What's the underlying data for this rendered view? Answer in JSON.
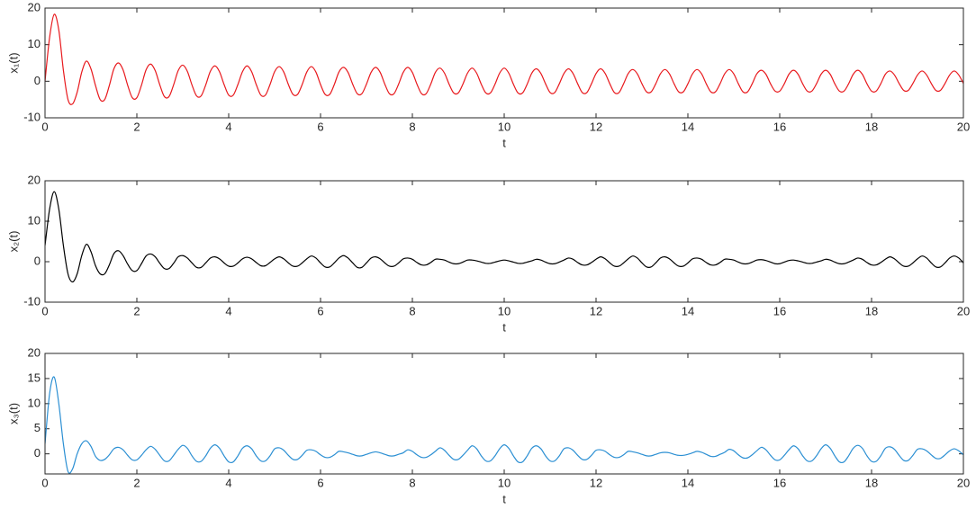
{
  "chart_data": [
    {
      "type": "line",
      "xlabel": "t",
      "ylabel": "x₁(t)",
      "color": "#e8191d",
      "xlim": [
        0,
        20
      ],
      "xticks": [
        0,
        2,
        4,
        6,
        8,
        10,
        12,
        14,
        16,
        18,
        20
      ],
      "ylim": [
        -10,
        20
      ],
      "yticks": [
        -10,
        0,
        10,
        20
      ],
      "x": [
        0,
        0.1,
        0.2,
        0.3,
        0.4,
        0.5,
        0.6,
        0.7,
        0.8,
        0.9,
        1,
        1.1,
        1.2,
        1.3,
        1.4,
        1.5,
        1.6,
        1.7,
        1.8,
        1.9,
        2,
        2.1,
        2.2,
        2.3,
        2.4,
        2.5,
        2.6,
        2.7,
        2.8,
        2.9,
        3,
        3.1,
        3.2,
        3.3,
        3.4,
        3.5,
        3.6,
        3.7,
        3.8,
        3.9,
        4,
        4.1,
        4.2,
        4.3,
        4.4,
        4.5,
        4.6,
        4.7,
        4.8,
        4.9,
        5,
        5.1,
        5.2,
        5.3,
        5.4,
        5.5,
        5.6,
        5.7,
        5.8,
        5.9,
        6,
        6.1,
        6.2,
        6.3,
        6.4,
        6.5,
        6.6,
        6.7,
        6.8,
        6.9,
        7,
        7.1,
        7.2,
        7.3,
        7.4,
        7.5,
        7.6,
        7.7,
        7.8,
        7.9,
        8,
        8.1,
        8.2,
        8.3,
        8.4,
        8.5,
        8.6,
        8.7,
        8.8,
        8.9,
        9,
        9.1,
        9.2,
        9.3,
        9.4,
        9.5,
        9.6,
        9.7,
        9.8,
        9.9,
        10,
        10.1,
        10.2,
        10.3,
        10.4,
        10.5,
        10.6,
        10.7,
        10.8,
        10.9,
        11,
        11.1,
        11.2,
        11.3,
        11.4,
        11.5,
        11.6,
        11.7,
        11.8,
        11.9,
        12,
        12.1,
        12.2,
        12.3,
        12.4,
        12.5,
        12.6,
        12.7,
        12.8,
        12.9,
        13,
        13.1,
        13.2,
        13.3,
        13.4,
        13.5,
        13.6,
        13.7,
        13.8,
        13.9,
        14,
        14.1,
        14.2,
        14.3,
        14.4,
        14.5,
        14.6,
        14.7,
        14.8,
        14.9,
        15,
        15.1,
        15.2,
        15.3,
        15.4,
        15.5,
        15.6,
        15.7,
        15.8,
        15.9,
        16,
        16.1,
        16.2,
        16.3,
        16.4,
        16.5,
        16.6,
        16.7,
        16.8,
        16.9,
        17,
        17.1,
        17.2,
        17.3,
        17.4,
        17.5,
        17.6,
        17.7,
        17.8,
        17.9,
        18,
        18.1,
        18.2,
        18.3,
        18.4,
        18.5,
        18.6,
        18.7,
        18.8,
        18.9,
        19,
        19.1,
        19.2,
        19.3,
        19.4,
        19.5,
        19.6,
        19.7,
        19.8,
        19.9,
        20
      ],
      "values": [
        0,
        12,
        18.3,
        14,
        3,
        -5,
        -6.2,
        -3,
        2.5,
        5.5,
        3.4,
        -1.2,
        -5,
        -5,
        -1.2,
        3.4,
        5,
        3.1,
        -1.1,
        -4.5,
        -4.5,
        -1.1,
        3.1,
        4.7,
        2.9,
        -1,
        -4.2,
        -4.2,
        -1,
        2.9,
        4.4,
        2.7,
        -1,
        -4,
        -4,
        -1,
        2.7,
        4.2,
        2.6,
        -0.9,
        -3.8,
        -3.8,
        -0.9,
        2.6,
        4.2,
        2.6,
        -0.9,
        -3.8,
        -3.8,
        -0.9,
        2.6,
        4,
        2.5,
        -0.9,
        -3.6,
        -3.6,
        -0.9,
        2.5,
        4,
        2.5,
        -0.9,
        -3.6,
        -3.6,
        -0.9,
        2.5,
        3.8,
        2.4,
        -0.8,
        -3.4,
        -3.4,
        -0.8,
        2.4,
        3.8,
        2.4,
        -0.8,
        -3.4,
        -3.4,
        -0.8,
        2.4,
        3.8,
        2.4,
        -0.8,
        -3.4,
        -3.4,
        -0.8,
        2.4,
        3.6,
        2.2,
        -0.8,
        -3.2,
        -3.2,
        -0.8,
        2.2,
        3.6,
        2.2,
        -0.8,
        -3.2,
        -3.2,
        -0.8,
        2.2,
        3.6,
        2.2,
        -0.8,
        -3.2,
        -3.2,
        -0.8,
        2.2,
        3.4,
        2.1,
        -0.7,
        -3.1,
        -3.1,
        -0.7,
        2.1,
        3.4,
        2.1,
        -0.7,
        -3.1,
        -3.1,
        -0.7,
        2.1,
        3.4,
        2.1,
        -0.7,
        -3.1,
        -3.1,
        -0.7,
        2.1,
        3.2,
        2,
        -0.7,
        -2.9,
        -2.9,
        -0.7,
        2,
        3.2,
        2,
        -0.7,
        -2.9,
        -2.9,
        -0.7,
        2,
        3.2,
        2,
        -0.7,
        -2.9,
        -2.9,
        -0.7,
        2,
        3.2,
        2,
        -0.7,
        -2.9,
        -2.9,
        -0.7,
        2,
        3,
        1.9,
        -0.7,
        -2.7,
        -2.7,
        -0.7,
        1.9,
        3,
        1.9,
        -0.7,
        -2.7,
        -2.7,
        -0.7,
        1.9,
        3,
        1.9,
        -0.7,
        -2.7,
        -2.7,
        -0.7,
        1.9,
        3,
        1.9,
        -0.7,
        -2.7,
        -2.7,
        -0.7,
        1.9,
        2.8,
        1.7,
        -0.6,
        -2.5,
        -2.5,
        -0.6,
        1.7,
        2.8,
        1.7,
        -0.6,
        -2.5,
        -2.5,
        -0.6,
        1.7,
        2.8,
        1.7,
        -0.6
      ]
    },
    {
      "type": "line",
      "xlabel": "t",
      "ylabel": "x₂(t)",
      "color": "#000000",
      "xlim": [
        0,
        20
      ],
      "xticks": [
        0,
        2,
        4,
        6,
        8,
        10,
        12,
        14,
        16,
        18,
        20
      ],
      "ylim": [
        -10,
        20
      ],
      "yticks": [
        -10,
        0,
        10,
        20
      ],
      "x": [
        0,
        0.1,
        0.2,
        0.3,
        0.4,
        0.5,
        0.6,
        0.7,
        0.8,
        0.9,
        1,
        1.1,
        1.2,
        1.3,
        1.4,
        1.5,
        1.6,
        1.7,
        1.8,
        1.9,
        2,
        2.1,
        2.2,
        2.3,
        2.4,
        2.5,
        2.6,
        2.7,
        2.8,
        2.9,
        3,
        3.1,
        3.2,
        3.3,
        3.4,
        3.5,
        3.6,
        3.7,
        3.8,
        3.9,
        4,
        4.1,
        4.2,
        4.3,
        4.4,
        4.5,
        4.6,
        4.7,
        4.8,
        4.9,
        5,
        5.1,
        5.2,
        5.3,
        5.4,
        5.5,
        5.6,
        5.7,
        5.8,
        5.9,
        6,
        6.1,
        6.2,
        6.3,
        6.4,
        6.5,
        6.6,
        6.7,
        6.8,
        6.9,
        7,
        7.1,
        7.2,
        7.3,
        7.4,
        7.5,
        7.6,
        7.7,
        7.8,
        7.9,
        8,
        8.1,
        8.2,
        8.3,
        8.4,
        8.5,
        8.6,
        8.7,
        8.8,
        8.9,
        9,
        9.1,
        9.2,
        9.3,
        9.4,
        9.5,
        9.6,
        9.7,
        9.8,
        9.9,
        10,
        10.1,
        10.2,
        10.3,
        10.4,
        10.5,
        10.6,
        10.7,
        10.8,
        10.9,
        11,
        11.1,
        11.2,
        11.3,
        11.4,
        11.5,
        11.6,
        11.7,
        11.8,
        11.9,
        12,
        12.1,
        12.2,
        12.3,
        12.4,
        12.5,
        12.6,
        12.7,
        12.8,
        12.9,
        13,
        13.1,
        13.2,
        13.3,
        13.4,
        13.5,
        13.6,
        13.7,
        13.8,
        13.9,
        14,
        14.1,
        14.2,
        14.3,
        14.4,
        14.5,
        14.6,
        14.7,
        14.8,
        14.9,
        15,
        15.1,
        15.2,
        15.3,
        15.4,
        15.5,
        15.6,
        15.7,
        15.8,
        15.9,
        16,
        16.1,
        16.2,
        16.3,
        16.4,
        16.5,
        16.6,
        16.7,
        16.8,
        16.9,
        17,
        17.1,
        17.2,
        17.3,
        17.4,
        17.5,
        17.6,
        17.7,
        17.8,
        17.9,
        18,
        18.1,
        18.2,
        18.3,
        18.4,
        18.5,
        18.6,
        18.7,
        18.8,
        18.9,
        19,
        19.1,
        19.2,
        19.3,
        19.4,
        19.5,
        19.6,
        19.7,
        19.8,
        19.9,
        20
      ],
      "values": [
        4,
        13,
        17.3,
        13,
        4,
        -3,
        -5,
        -3,
        1.5,
        4.3,
        2.5,
        -1,
        -3,
        -3,
        -0.8,
        2,
        2.7,
        1.5,
        -0.6,
        -2.2,
        -2.2,
        -0.5,
        1.4,
        1.9,
        1.2,
        -0.4,
        -1.7,
        -1.7,
        -0.4,
        1.2,
        1.5,
        0.9,
        -0.3,
        -1.4,
        -1.4,
        -0.3,
        0.9,
        1.2,
        0.7,
        -0.3,
        -1.1,
        -1.1,
        -0.3,
        0.7,
        1.1,
        0.7,
        -0.2,
        -1,
        -1,
        -0.2,
        0.7,
        1.2,
        0.7,
        -0.3,
        -1.1,
        -1.1,
        -0.3,
        0.7,
        1.4,
        0.9,
        -0.3,
        -1.3,
        -1.3,
        -0.3,
        0.9,
        1.5,
        0.9,
        -0.3,
        -1.4,
        -1.4,
        -0.3,
        0.9,
        1.2,
        0.7,
        -0.3,
        -1.1,
        -1.1,
        -0.3,
        0.7,
        0.9,
        0.6,
        -0.2,
        -0.8,
        -0.8,
        -0.2,
        0.6,
        0.6,
        0.4,
        -0.1,
        -0.5,
        -0.5,
        -0.1,
        0.4,
        0.4,
        0.2,
        -0.1,
        -0.4,
        -0.4,
        -0.1,
        0.2,
        0.4,
        0.2,
        -0.1,
        -0.4,
        -0.4,
        -0.1,
        0.2,
        0.6,
        0.4,
        -0.1,
        -0.5,
        -0.5,
        -0.1,
        0.4,
        0.9,
        0.6,
        -0.2,
        -0.8,
        -0.8,
        -0.2,
        0.6,
        1.2,
        0.7,
        -0.3,
        -1.1,
        -1.1,
        -0.3,
        0.7,
        1.4,
        0.9,
        -0.3,
        -1.3,
        -1.3,
        -0.3,
        0.9,
        1.2,
        0.7,
        -0.3,
        -1.1,
        -1.1,
        -0.3,
        0.7,
        0.9,
        0.6,
        -0.2,
        -0.8,
        -0.8,
        -0.2,
        0.6,
        0.6,
        0.4,
        -0.1,
        -0.5,
        -0.5,
        -0.1,
        0.4,
        0.5,
        0.3,
        -0.1,
        -0.5,
        -0.5,
        -0.1,
        0.3,
        0.4,
        0.2,
        -0.1,
        -0.4,
        -0.4,
        -0.1,
        0.2,
        0.6,
        0.4,
        -0.1,
        -0.5,
        -0.5,
        -0.1,
        0.4,
        0.9,
        0.6,
        -0.2,
        -0.8,
        -0.8,
        -0.2,
        0.6,
        1.2,
        0.7,
        -0.3,
        -1.1,
        -1.1,
        -0.3,
        0.7,
        1.4,
        0.9,
        -0.3,
        -1.3,
        -1.3,
        -0.3,
        0.9,
        1.4,
        0.9,
        -0.3
      ]
    },
    {
      "type": "line",
      "xlabel": "t",
      "ylabel": "x₃(t)",
      "color": "#2b8fd3",
      "xlim": [
        0,
        20
      ],
      "xticks": [
        0,
        2,
        4,
        6,
        8,
        10,
        12,
        14,
        16,
        18,
        20
      ],
      "ylim": [
        -4,
        20
      ],
      "yticks": [
        0,
        5,
        10,
        15,
        20
      ],
      "x": [
        0,
        0.1,
        0.2,
        0.3,
        0.4,
        0.5,
        0.6,
        0.7,
        0.8,
        0.9,
        1,
        1.1,
        1.2,
        1.3,
        1.4,
        1.5,
        1.6,
        1.7,
        1.8,
        1.9,
        2,
        2.1,
        2.2,
        2.3,
        2.4,
        2.5,
        2.6,
        2.7,
        2.8,
        2.9,
        3,
        3.1,
        3.2,
        3.3,
        3.4,
        3.5,
        3.6,
        3.7,
        3.8,
        3.9,
        4,
        4.1,
        4.2,
        4.3,
        4.4,
        4.5,
        4.6,
        4.7,
        4.8,
        4.9,
        5,
        5.1,
        5.2,
        5.3,
        5.4,
        5.5,
        5.6,
        5.7,
        5.8,
        5.9,
        6,
        6.1,
        6.2,
        6.3,
        6.4,
        6.5,
        6.6,
        6.7,
        6.8,
        6.9,
        7,
        7.1,
        7.2,
        7.3,
        7.4,
        7.5,
        7.6,
        7.7,
        7.8,
        7.9,
        8,
        8.1,
        8.2,
        8.3,
        8.4,
        8.5,
        8.6,
        8.7,
        8.8,
        8.9,
        9,
        9.1,
        9.2,
        9.3,
        9.4,
        9.5,
        9.6,
        9.7,
        9.8,
        9.9,
        10,
        10.1,
        10.2,
        10.3,
        10.4,
        10.5,
        10.6,
        10.7,
        10.8,
        10.9,
        11,
        11.1,
        11.2,
        11.3,
        11.4,
        11.5,
        11.6,
        11.7,
        11.8,
        11.9,
        12,
        12.1,
        12.2,
        12.3,
        12.4,
        12.5,
        12.6,
        12.7,
        12.8,
        12.9,
        13,
        13.1,
        13.2,
        13.3,
        13.4,
        13.5,
        13.6,
        13.7,
        13.8,
        13.9,
        14,
        14.1,
        14.2,
        14.3,
        14.4,
        14.5,
        14.6,
        14.7,
        14.8,
        14.9,
        15,
        15.1,
        15.2,
        15.3,
        15.4,
        15.5,
        15.6,
        15.7,
        15.8,
        15.9,
        16,
        16.1,
        16.2,
        16.3,
        16.4,
        16.5,
        16.6,
        16.7,
        16.8,
        16.9,
        17,
        17.1,
        17.2,
        17.3,
        17.4,
        17.5,
        17.6,
        17.7,
        17.8,
        17.9,
        18,
        18.1,
        18.2,
        18.3,
        18.4,
        18.5,
        18.6,
        18.7,
        18.8,
        18.9,
        19,
        19.1,
        19.2,
        19.3,
        19.4,
        19.5,
        19.6,
        19.7,
        19.8,
        19.9,
        20
      ],
      "values": [
        2,
        12,
        15.3,
        10,
        2,
        -3.5,
        -3,
        0,
        2,
        2.6,
        1.5,
        -0.5,
        -1.3,
        -1.1,
        -0.2,
        1,
        1.3,
        0.8,
        -0.3,
        -1.2,
        -1.2,
        -0.3,
        0.8,
        1.5,
        0.9,
        -0.3,
        -1.4,
        -1.4,
        -0.3,
        0.9,
        1.7,
        1.1,
        -0.4,
        -1.5,
        -1.5,
        -0.4,
        1.1,
        1.8,
        1.1,
        -0.4,
        -1.6,
        -1.6,
        -0.4,
        1.1,
        1.6,
        1,
        -0.4,
        -1.4,
        -1.4,
        -0.4,
        1,
        1.2,
        0.7,
        -0.3,
        -1.1,
        -1.1,
        -0.3,
        0.7,
        0.8,
        0.5,
        -0.2,
        -0.7,
        -0.7,
        -0.2,
        0.5,
        0.4,
        0.2,
        -0.1,
        -0.4,
        -0.4,
        -0.1,
        0.2,
        0.4,
        0.2,
        -0.1,
        -0.4,
        -0.4,
        -0.1,
        0.2,
        0.8,
        0.5,
        -0.2,
        -0.7,
        -0.7,
        -0.2,
        0.5,
        1.2,
        0.7,
        -0.3,
        -1.1,
        -1.1,
        -0.3,
        0.7,
        1.6,
        1,
        -0.4,
        -1.4,
        -1.4,
        -0.4,
        1,
        1.8,
        1.1,
        -0.4,
        -1.6,
        -1.6,
        -0.4,
        1.1,
        1.6,
        1,
        -0.4,
        -1.4,
        -1.4,
        -0.4,
        1,
        1.2,
        0.7,
        -0.3,
        -1.1,
        -1.1,
        -0.3,
        0.7,
        0.8,
        0.5,
        -0.2,
        -0.7,
        -0.7,
        -0.2,
        0.5,
        0.4,
        0.2,
        -0.1,
        -0.4,
        -0.4,
        -0.1,
        0.2,
        0.3,
        0.2,
        -0.1,
        -0.3,
        -0.3,
        -0.1,
        0.2,
        0.5,
        0.3,
        -0.1,
        -0.5,
        -0.5,
        -0.1,
        0.3,
        0.9,
        0.6,
        -0.2,
        -0.8,
        -0.8,
        -0.2,
        0.6,
        1.3,
        0.8,
        -0.3,
        -1.2,
        -1.2,
        -0.3,
        0.8,
        1.6,
        1,
        -0.4,
        -1.4,
        -1.4,
        -0.4,
        1,
        1.8,
        1.1,
        -0.4,
        -1.6,
        -1.6,
        -0.4,
        1.1,
        1.7,
        1.1,
        -0.4,
        -1.5,
        -1.5,
        -0.4,
        1.1,
        1.4,
        0.9,
        -0.3,
        -1.3,
        -1.3,
        -0.3,
        0.9,
        1,
        0.6,
        -0.2,
        -0.9,
        -0.9,
        -0.2,
        0.6,
        1,
        0.6,
        -0.2
      ]
    }
  ]
}
